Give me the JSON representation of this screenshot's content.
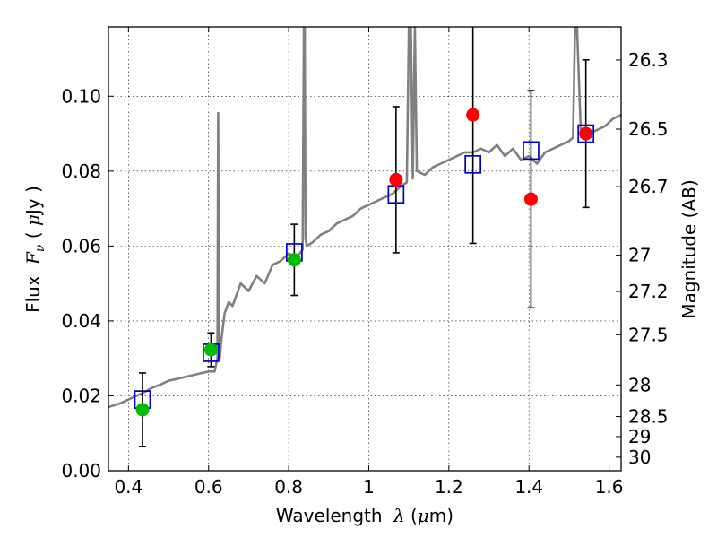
{
  "chart_data": {
    "type": "scatter",
    "xlabel": {
      "prefix": "Wavelength ",
      "symbol": "λ",
      "unit_open": " (",
      "unit_mu": "μ",
      "unit_rest": "m)"
    },
    "ylabel": {
      "prefix": "Flux ",
      "symbol": "F",
      "sub": "ν",
      "unit_open": " ( ",
      "unit_mu": "μ",
      "unit_rest": "Jy )"
    },
    "y2label": "Magnitude (AB)",
    "xlim": [
      0.35,
      1.63
    ],
    "ylim": [
      0.0,
      0.1185
    ],
    "grid": true,
    "x_ticks": [
      "0.4",
      "0.6",
      "0.8",
      "1",
      "1.2",
      "1.4",
      "1.6"
    ],
    "x_tick_values": [
      0.4,
      0.6,
      0.8,
      1.0,
      1.2,
      1.4,
      1.6
    ],
    "y_ticks": [
      "0.00",
      "0.02",
      "0.04",
      "0.06",
      "0.08",
      "0.10"
    ],
    "y_tick_values": [
      0.0,
      0.02,
      0.04,
      0.06,
      0.08,
      0.1
    ],
    "mag_ticks": [
      "26.3",
      "26.5",
      "26.7",
      "27",
      "27.2",
      "27.5",
      "28",
      "28.5",
      "29",
      "30"
    ],
    "mag_tick_values": [
      26.3,
      26.5,
      26.7,
      27.0,
      27.2,
      27.5,
      28.0,
      28.5,
      29.0,
      30.0
    ],
    "model_boxes": {
      "color": "#0000cc",
      "points": [
        {
          "x": 0.435,
          "y": 0.019
        },
        {
          "x": 0.606,
          "y": 0.0315
        },
        {
          "x": 0.814,
          "y": 0.0583
        },
        {
          "x": 1.068,
          "y": 0.0738
        },
        {
          "x": 1.26,
          "y": 0.0818
        },
        {
          "x": 1.405,
          "y": 0.0855
        },
        {
          "x": 1.542,
          "y": 0.09
        }
      ]
    },
    "photometry": [
      {
        "x": 0.435,
        "y": 0.0163,
        "err": 0.0098,
        "color": "#00bb00"
      },
      {
        "x": 0.606,
        "y": 0.0323,
        "err": 0.0045,
        "color": "#00bb00"
      },
      {
        "x": 0.814,
        "y": 0.0563,
        "err": 0.0095,
        "color": "#00bb00"
      },
      {
        "x": 1.068,
        "y": 0.0777,
        "err": 0.0195,
        "color": "#ff0000"
      },
      {
        "x": 1.26,
        "y": 0.095,
        "err": 0.0343,
        "color": "#ff0000"
      },
      {
        "x": 1.405,
        "y": 0.0725,
        "err": 0.029,
        "color": "#ff0000"
      },
      {
        "x": 1.542,
        "y": 0.09,
        "err": 0.0197,
        "color": "#ff0000"
      }
    ],
    "sed": {
      "color": "#808080",
      "x": [
        0.35,
        0.38,
        0.4,
        0.42,
        0.44,
        0.46,
        0.48,
        0.5,
        0.52,
        0.54,
        0.56,
        0.58,
        0.6,
        0.615,
        0.622,
        0.624,
        0.626,
        0.628,
        0.632,
        0.64,
        0.65,
        0.66,
        0.68,
        0.7,
        0.72,
        0.74,
        0.76,
        0.78,
        0.8,
        0.82,
        0.835,
        0.838,
        0.84,
        0.842,
        0.845,
        0.86,
        0.88,
        0.9,
        0.92,
        0.94,
        0.96,
        0.98,
        1.0,
        1.02,
        1.04,
        1.06,
        1.08,
        1.095,
        1.1,
        1.105,
        1.11,
        1.115,
        1.12,
        1.14,
        1.16,
        1.18,
        1.2,
        1.22,
        1.24,
        1.26,
        1.28,
        1.3,
        1.32,
        1.34,
        1.36,
        1.38,
        1.4,
        1.42,
        1.44,
        1.46,
        1.48,
        1.5,
        1.51,
        1.515,
        1.52,
        1.53,
        1.55,
        1.57,
        1.59,
        1.61,
        1.63
      ],
      "y": [
        0.017,
        0.018,
        0.019,
        0.02,
        0.021,
        0.0222,
        0.023,
        0.024,
        0.0245,
        0.025,
        0.0255,
        0.026,
        0.0265,
        0.0265,
        0.03,
        0.0955,
        0.04,
        0.03,
        0.035,
        0.042,
        0.045,
        0.044,
        0.05,
        0.048,
        0.052,
        0.05,
        0.055,
        0.056,
        0.058,
        0.057,
        0.059,
        0.1185,
        0.1185,
        0.062,
        0.06,
        0.061,
        0.063,
        0.064,
        0.066,
        0.067,
        0.068,
        0.07,
        0.071,
        0.072,
        0.073,
        0.074,
        0.076,
        0.077,
        0.1185,
        0.1185,
        0.078,
        0.1185,
        0.08,
        0.079,
        0.081,
        0.082,
        0.083,
        0.084,
        0.085,
        0.085,
        0.086,
        0.085,
        0.087,
        0.084,
        0.086,
        0.083,
        0.084,
        0.082,
        0.085,
        0.086,
        0.087,
        0.088,
        0.089,
        0.1185,
        0.1185,
        0.089,
        0.09,
        0.091,
        0.092,
        0.094,
        0.095
      ]
    }
  }
}
